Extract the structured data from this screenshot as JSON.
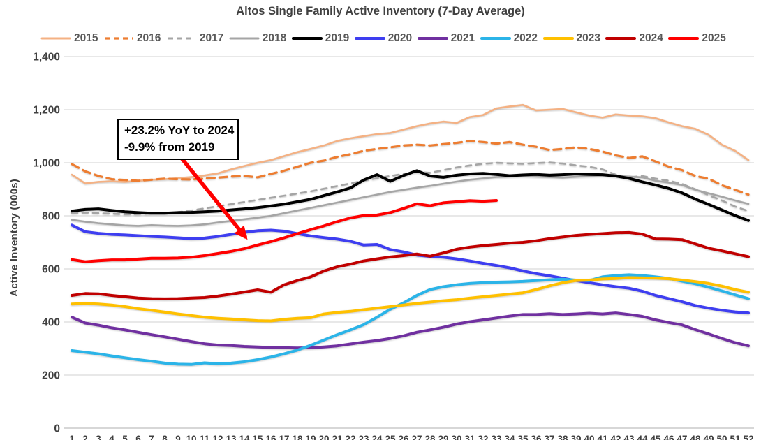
{
  "chart_data": {
    "type": "line",
    "title": "Altos Single Family Active Inventory (7-Day Average)",
    "ylabel": "Active Inventory (000s)",
    "xlabel": "",
    "ylim": [
      0,
      1400
    ],
    "y_ticks": [
      0,
      200,
      400,
      600,
      800,
      1000,
      1200,
      1400
    ],
    "y_tick_labels": [
      "0",
      "200",
      "400",
      "600",
      "800",
      "1,000",
      "1,200",
      "1,400"
    ],
    "x_ticks": [
      1,
      2,
      3,
      4,
      5,
      6,
      7,
      8,
      9,
      10,
      11,
      12,
      13,
      14,
      15,
      16,
      17,
      18,
      19,
      20,
      21,
      22,
      23,
      24,
      25,
      26,
      27,
      28,
      29,
      30,
      31,
      32,
      33,
      34,
      35,
      36,
      37,
      38,
      39,
      40,
      41,
      42,
      43,
      44,
      45,
      46,
      47,
      48,
      49,
      50,
      51,
      52
    ],
    "grid": true,
    "legend_position": "top",
    "annotation": {
      "line1": "+23.2% YoY to 2024",
      "line2": "-9.9% from 2019",
      "arrow_color": "#FF0000"
    },
    "series": [
      {
        "name": "2015",
        "color": "#F4B183",
        "style": "solid",
        "width": 2.6,
        "values": [
          955,
          922,
          928,
          930,
          928,
          932,
          936,
          938,
          942,
          946,
          952,
          960,
          975,
          988,
          1000,
          1010,
          1025,
          1040,
          1052,
          1065,
          1082,
          1092,
          1100,
          1108,
          1112,
          1125,
          1138,
          1148,
          1155,
          1150,
          1172,
          1180,
          1205,
          1212,
          1218,
          1197,
          1200,
          1203,
          1190,
          1178,
          1170,
          1182,
          1178,
          1175,
          1168,
          1152,
          1138,
          1128,
          1105,
          1068,
          1045,
          1010
        ]
      },
      {
        "name": "2016",
        "color": "#ED7D31",
        "style": "dashed",
        "width": 3.2,
        "values": [
          995,
          968,
          950,
          938,
          935,
          932,
          936,
          940,
          938,
          937,
          940,
          944,
          948,
          950,
          945,
          958,
          970,
          985,
          1000,
          1008,
          1022,
          1032,
          1045,
          1052,
          1058,
          1065,
          1068,
          1065,
          1070,
          1075,
          1082,
          1078,
          1072,
          1078,
          1068,
          1060,
          1048,
          1052,
          1058,
          1052,
          1042,
          1028,
          1018,
          1024,
          1005,
          985,
          972,
          950,
          940,
          915,
          898,
          880
        ]
      },
      {
        "name": "2017",
        "color": "#A5A5A5",
        "style": "dashed",
        "width": 2.6,
        "values": [
          810,
          812,
          810,
          808,
          806,
          806,
          808,
          810,
          814,
          820,
          828,
          836,
          844,
          852,
          860,
          868,
          876,
          884,
          892,
          902,
          912,
          922,
          932,
          942,
          950,
          958,
          965,
          962,
          972,
          982,
          990,
          996,
          1000,
          998,
          996,
          999,
          1001,
          997,
          990,
          985,
          975,
          955,
          945,
          950,
          940,
          932,
          920,
          900,
          878,
          858,
          835,
          818
        ]
      },
      {
        "name": "2018",
        "color": "#A5A5A5",
        "style": "solid",
        "width": 2.6,
        "values": [
          785,
          778,
          772,
          768,
          764,
          762,
          765,
          763,
          762,
          764,
          768,
          775,
          781,
          787,
          793,
          800,
          810,
          820,
          830,
          840,
          850,
          860,
          870,
          880,
          890,
          898,
          906,
          913,
          921,
          929,
          936,
          941,
          946,
          948,
          950,
          948,
          946,
          944,
          947,
          950,
          952,
          950,
          948,
          945,
          932,
          925,
          916,
          898,
          885,
          872,
          858,
          845
        ]
      },
      {
        "name": "2019",
        "color": "#000000",
        "style": "solid",
        "width": 4,
        "values": [
          818,
          824,
          826,
          820,
          815,
          812,
          810,
          810,
          812,
          813,
          815,
          818,
          822,
          826,
          831,
          837,
          844,
          853,
          862,
          876,
          890,
          905,
          935,
          955,
          930,
          952,
          970,
          950,
          945,
          953,
          958,
          960,
          956,
          951,
          954,
          956,
          953,
          955,
          958,
          956,
          955,
          950,
          941,
          928,
          916,
          903,
          886,
          863,
          843,
          822,
          801,
          782
        ]
      },
      {
        "name": "2020",
        "color": "#3E3EF0",
        "style": "solid",
        "width": 4,
        "values": [
          765,
          740,
          734,
          730,
          728,
          725,
          722,
          720,
          717,
          714,
          716,
          722,
          730,
          738,
          744,
          746,
          742,
          733,
          724,
          718,
          712,
          704,
          690,
          692,
          673,
          664,
          652,
          647,
          644,
          638,
          630,
          621,
          613,
          604,
          592,
          582,
          574,
          565,
          556,
          548,
          540,
          533,
          527,
          516,
          500,
          488,
          476,
          462,
          452,
          444,
          438,
          434
        ]
      },
      {
        "name": "2021",
        "color": "#7030A0",
        "style": "solid",
        "width": 4,
        "values": [
          418,
          396,
          388,
          378,
          370,
          361,
          352,
          344,
          335,
          326,
          318,
          313,
          311,
          308,
          306,
          304,
          303,
          302,
          303,
          306,
          310,
          317,
          324,
          330,
          338,
          348,
          361,
          370,
          380,
          392,
          401,
          408,
          415,
          422,
          428,
          428,
          431,
          428,
          430,
          433,
          430,
          434,
          428,
          421,
          408,
          398,
          389,
          371,
          355,
          338,
          322,
          310
        ]
      },
      {
        "name": "2022",
        "color": "#2BB4E8",
        "style": "solid",
        "width": 4,
        "values": [
          292,
          286,
          280,
          272,
          265,
          258,
          252,
          245,
          241,
          240,
          246,
          243,
          245,
          250,
          258,
          268,
          280,
          294,
          312,
          332,
          352,
          370,
          390,
          418,
          448,
          472,
          500,
          522,
          533,
          540,
          545,
          548,
          550,
          551,
          553,
          556,
          559,
          561,
          558,
          556,
          570,
          575,
          578,
          575,
          570,
          564,
          554,
          544,
          531,
          517,
          502,
          488
        ]
      },
      {
        "name": "2023",
        "color": "#FFC000",
        "style": "solid",
        "width": 4,
        "values": [
          468,
          470,
          468,
          464,
          458,
          450,
          444,
          437,
          430,
          424,
          418,
          414,
          411,
          408,
          405,
          404,
          410,
          414,
          416,
          430,
          436,
          440,
          446,
          452,
          458,
          464,
          470,
          475,
          480,
          484,
          490,
          495,
          500,
          505,
          510,
          522,
          536,
          548,
          556,
          558,
          562,
          564,
          567,
          566,
          565,
          563,
          558,
          552,
          545,
          535,
          522,
          512
        ]
      },
      {
        "name": "2024",
        "color": "#C00000",
        "style": "solid",
        "width": 4,
        "values": [
          500,
          507,
          506,
          500,
          495,
          490,
          488,
          487,
          488,
          490,
          492,
          498,
          505,
          513,
          521,
          512,
          540,
          556,
          570,
          592,
          608,
          618,
          630,
          638,
          645,
          650,
          656,
          648,
          660,
          674,
          682,
          688,
          692,
          697,
          700,
          706,
          714,
          720,
          726,
          730,
          733,
          736,
          737,
          731,
          713,
          712,
          710,
          694,
          678,
          668,
          657,
          646
        ]
      },
      {
        "name": "2025",
        "color": "#FF0000",
        "style": "solid",
        "width": 4,
        "values": [
          635,
          627,
          631,
          634,
          634,
          637,
          640,
          640,
          641,
          644,
          650,
          658,
          666,
          676,
          690,
          703,
          717,
          733,
          748,
          762,
          778,
          792,
          801,
          803,
          812,
          828,
          845,
          838,
          849,
          853,
          857,
          855,
          858
        ]
      }
    ]
  },
  "layout_colors": {
    "gridline": "#D9D9D9",
    "axis_line": "#BFBFBF",
    "tick_label": "#404040",
    "legend_label": "#595959"
  }
}
